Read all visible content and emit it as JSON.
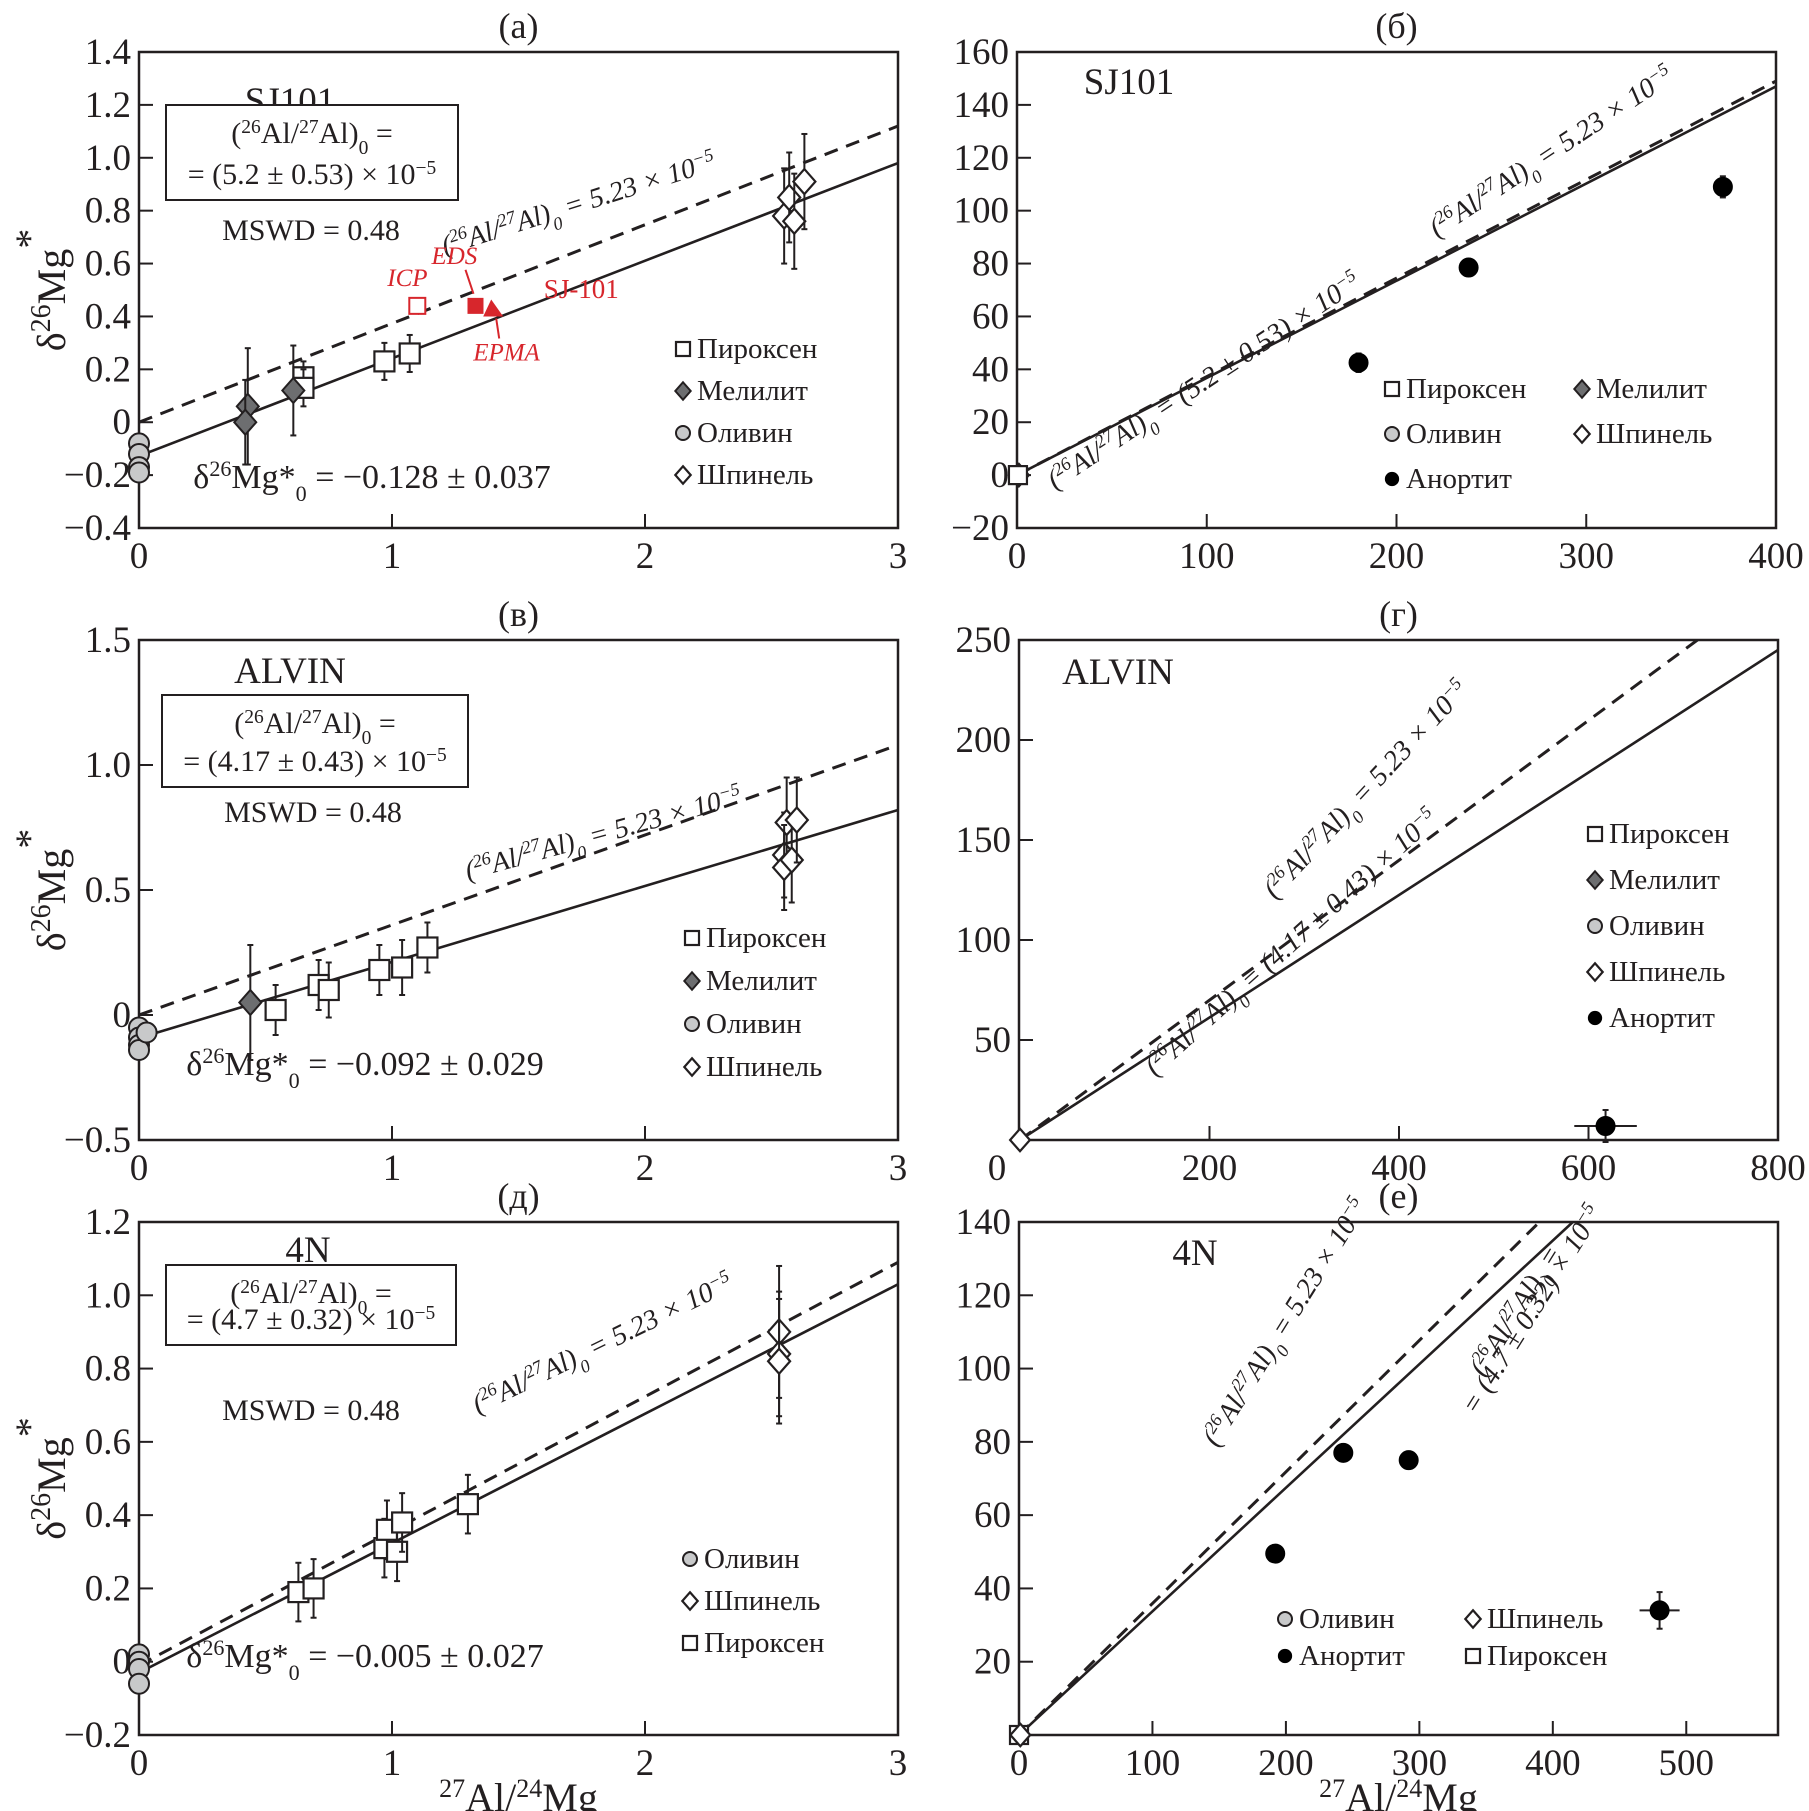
{
  "legend_names": {
    "pyroxene": "Пироксен",
    "melilite": "Мелилит",
    "olivine": "Оливин",
    "spinel": "Шпинель",
    "anorthite": "Анортит"
  },
  "colors": {
    "ink": "#231f20",
    "melilite_fill": "#6d6e70",
    "olivine_fill": "#c8c9ca",
    "red_annotation": "#d7262c"
  },
  "chart_data": [
    {
      "id": "a",
      "type": "scatter",
      "panel_tag": "(a)",
      "sample": "SJ101",
      "xlabel": "",
      "ylabel": "δ26Mg*",
      "xlim": [
        0,
        3
      ],
      "ylim": [
        -0.4,
        1.4
      ],
      "xticks": [
        0,
        1,
        2,
        3
      ],
      "yticks": [
        -0.4,
        -0.2,
        0,
        0.2,
        0.4,
        0.6,
        0.8,
        1.0,
        1.2,
        1.4
      ],
      "ytick_labels": [
        "−0.4",
        "−0.2",
        "0",
        "0.2",
        "0.4",
        "0.6",
        "0.8",
        "1.0",
        "1.2",
        "1.4"
      ],
      "xtick_labels": [
        "0",
        "1",
        "2",
        "3"
      ],
      "grid": false,
      "box": {
        "line1": "(²⁶Al/²⁷Al)₀ =",
        "line2": "= (5.2 ± 0.53) × 10⁻⁵"
      },
      "mswd": "MSWD = 0.48",
      "intercept_text": "δ²⁶Mg*₀ = −0.128 ± 0.037",
      "lines": [
        {
          "name": "reference",
          "style": "dashed",
          "x": [
            0,
            3
          ],
          "y": [
            0.0,
            1.12
          ],
          "label": "(²⁶Al/²⁷Al)₀ = 5.23 × 10⁻⁵"
        },
        {
          "name": "isochron",
          "style": "solid",
          "x": [
            0,
            3
          ],
          "y": [
            -0.128,
            0.98
          ],
          "label": ""
        }
      ],
      "legend": {
        "placement": "bottom-right",
        "items": [
          "pyroxene",
          "melilite",
          "olivine",
          "spinel"
        ]
      },
      "series": [
        {
          "name": "pyroxene",
          "points": [
            [
              0.65,
              0.17,
              0.06
            ],
            [
              0.65,
              0.13,
              0.07
            ],
            [
              0.97,
              0.23,
              0.07
            ],
            [
              1.07,
              0.26,
              0.07
            ]
          ]
        },
        {
          "name": "melilite",
          "points": [
            [
              0.43,
              0.06,
              0.22
            ],
            [
              0.42,
              0.0,
              0.16
            ],
            [
              0.61,
              0.12,
              0.17
            ]
          ]
        },
        {
          "name": "olivine",
          "points": [
            [
              0.0,
              -0.08,
              0.0
            ],
            [
              0.0,
              -0.12,
              0.0
            ],
            [
              0.0,
              -0.17,
              0.0
            ],
            [
              0.0,
              -0.19,
              0.0
            ]
          ]
        },
        {
          "name": "spinel",
          "points": [
            [
              2.55,
              0.78,
              0.18
            ],
            [
              2.57,
              0.85,
              0.17
            ],
            [
              2.59,
              0.76,
              0.18
            ],
            [
              2.63,
              0.91,
              0.18
            ]
          ]
        }
      ],
      "annotations": [
        {
          "text": "ICP",
          "x": 1.1,
          "y": 0.44,
          "marker": "open-square"
        },
        {
          "text": "EDS",
          "x": 1.33,
          "y": 0.44,
          "marker": "filled-square"
        },
        {
          "text": "EPMA",
          "x": 1.4,
          "y": 0.43,
          "marker": "filled-triangle"
        },
        {
          "text": "SJ-101",
          "x": 1.6,
          "y": 0.47,
          "marker": "none"
        }
      ]
    },
    {
      "id": "b",
      "type": "scatter",
      "panel_tag": "(б)",
      "sample": "SJ101",
      "xlabel": "",
      "ylabel": "",
      "xlim": [
        0,
        400
      ],
      "ylim": [
        -20,
        160
      ],
      "xticks": [
        0,
        100,
        200,
        300,
        400
      ],
      "xtick_labels": [
        "0",
        "100",
        "200",
        "300",
        "400"
      ],
      "yticks": [
        -20,
        0,
        20,
        40,
        60,
        80,
        100,
        120,
        140,
        160
      ],
      "ytick_labels": [
        "−20",
        "0",
        "20",
        "40",
        "60",
        "80",
        "100",
        "120",
        "140",
        "160"
      ],
      "grid": false,
      "lines": [
        {
          "name": "reference",
          "style": "dashed",
          "x": [
            0,
            400
          ],
          "y": [
            0,
            149
          ],
          "label": "(²⁶Al/²⁷Al)₀ = 5.23 × 10⁻⁵"
        },
        {
          "name": "isochron",
          "style": "solid",
          "x": [
            0,
            400
          ],
          "y": [
            0,
            147
          ],
          "label": "(²⁶Al/²⁷Al)₀ = (5.2 ± 0.53) × 10⁻⁵"
        }
      ],
      "legend": {
        "placement": "bottom-right",
        "items": [
          "pyroxene",
          "melilite",
          "olivine",
          "spinel",
          "anorthite"
        ]
      },
      "series": [
        {
          "name": "spinel",
          "points": [
            [
              1,
              0,
              0
            ]
          ]
        },
        {
          "name": "pyroxene",
          "points": [
            [
              0.5,
              0,
              0
            ]
          ]
        },
        {
          "name": "anorthite",
          "points": [
            [
              180,
              42.5,
              3.5
            ],
            [
              238,
              78.5,
              3
            ],
            [
              372,
              109,
              4
            ]
          ]
        }
      ]
    },
    {
      "id": "c",
      "type": "scatter",
      "panel_tag": "(в)",
      "sample": "ALVIN",
      "xlabel": "",
      "ylabel": "δ26Mg*",
      "xlim": [
        0,
        3
      ],
      "ylim": [
        -0.5,
        1.5
      ],
      "xticks": [
        0,
        1,
        2,
        3
      ],
      "xtick_labels": [
        "0",
        "1",
        "2",
        "3"
      ],
      "yticks": [
        -0.5,
        0,
        0.5,
        1.0,
        1.5
      ],
      "ytick_labels": [
        "−0.5",
        "0",
        "0.5",
        "1.0",
        "1.5"
      ],
      "grid": false,
      "box": {
        "line1": "(²⁶Al/²⁷Al)₀ =",
        "line2": "= (4.17 ± 0.43) × 10⁻⁵"
      },
      "mswd": "MSWD = 0.48",
      "intercept_text": "δ²⁶Mg*₀ = −0.092 ± 0.029",
      "lines": [
        {
          "name": "reference",
          "style": "dashed",
          "x": [
            0,
            3
          ],
          "y": [
            0.0,
            1.08
          ],
          "label": "(²⁶Al/²⁷Al)₀ = 5.23 × 10⁻⁵"
        },
        {
          "name": "isochron",
          "style": "solid",
          "x": [
            0,
            3
          ],
          "y": [
            -0.092,
            0.82
          ],
          "label": ""
        }
      ],
      "legend": {
        "placement": "bottom-right",
        "items": [
          "pyroxene",
          "melilite",
          "olivine",
          "spinel"
        ]
      },
      "series": [
        {
          "name": "pyroxene",
          "points": [
            [
              0.54,
              0.02,
              0.1
            ],
            [
              0.71,
              0.12,
              0.1
            ],
            [
              0.75,
              0.1,
              0.11
            ],
            [
              0.95,
              0.18,
              0.1
            ],
            [
              1.04,
              0.19,
              0.11
            ],
            [
              1.14,
              0.27,
              0.1
            ]
          ]
        },
        {
          "name": "melilite",
          "points": [
            [
              0.44,
              0.05,
              0.23
            ]
          ]
        },
        {
          "name": "olivine",
          "points": [
            [
              0.0,
              -0.05,
              0.0
            ],
            [
              0.0,
              -0.09,
              0.0
            ],
            [
              0.0,
              -0.12,
              0.0
            ],
            [
              0.0,
              -0.14,
              0.0
            ],
            [
              0.03,
              -0.07,
              0.0
            ]
          ]
        },
        {
          "name": "spinel",
          "points": [
            [
              2.55,
              0.64,
              0.17
            ],
            [
              2.56,
              0.77,
              0.18
            ],
            [
              2.55,
              0.59,
              0.17
            ],
            [
              2.58,
              0.62,
              0.17
            ],
            [
              2.6,
              0.78,
              0.17
            ]
          ]
        }
      ]
    },
    {
      "id": "d",
      "type": "scatter",
      "panel_tag": "(г)",
      "sample": "ALVIN",
      "xlabel": "",
      "ylabel": "",
      "xlim": [
        0,
        800
      ],
      "ylim": [
        0,
        250
      ],
      "xticks": [
        0,
        200,
        400,
        600,
        800
      ],
      "xtick_labels": [
        "0",
        "200",
        "400",
        "600",
        "800"
      ],
      "yticks": [
        50,
        100,
        150,
        200,
        250
      ],
      "ytick_labels": [
        "50",
        "100",
        "150",
        "200",
        "250"
      ],
      "grid": false,
      "lines": [
        {
          "name": "reference",
          "style": "dashed",
          "x": [
            0,
            715
          ],
          "y": [
            0,
            250
          ],
          "label": "(²⁶Al/²⁷Al)₀ = 5.23 × 10⁻⁵"
        },
        {
          "name": "isochron",
          "style": "solid",
          "x": [
            0,
            800
          ],
          "y": [
            0,
            245
          ],
          "label": "(²⁶Al/²⁷Al)₀ = (4.17 ± 0.43) × 10⁻⁵"
        }
      ],
      "legend": {
        "placement": "right",
        "items": [
          "pyroxene",
          "melilite",
          "olivine",
          "spinel",
          "anorthite"
        ]
      },
      "series": [
        {
          "name": "spinel",
          "points": [
            [
              0,
              0,
              0
            ]
          ]
        },
        {
          "name": "anorthite",
          "points": [
            [
              618,
              7,
              8
            ]
          ],
          "xerr": 33
        }
      ]
    },
    {
      "id": "e",
      "type": "scatter",
      "panel_tag": "(д)",
      "sample": "4N",
      "xlabel": "27Al/24Mg",
      "ylabel": "δ26Mg*",
      "xlim": [
        0,
        3
      ],
      "ylim": [
        -0.2,
        1.2
      ],
      "xticks": [
        0,
        1,
        2,
        3
      ],
      "xtick_labels": [
        "0",
        "1",
        "2",
        "3"
      ],
      "yticks": [
        -0.2,
        0,
        0.2,
        0.4,
        0.6,
        0.8,
        1.0,
        1.2
      ],
      "ytick_labels": [
        "−0.2",
        "0",
        "0.2",
        "0.4",
        "0.6",
        "0.8",
        "1.0",
        "1.2"
      ],
      "grid": false,
      "box": {
        "line1": "(²⁶Al/²⁷Al)₀ =",
        "line2": "= (4.7 ± 0.32) × 10⁻⁵"
      },
      "mswd": "MSWD = 0.48",
      "intercept_text": "δ²⁶Mg*₀ = −0.005 ± 0.027",
      "lines": [
        {
          "name": "reference",
          "style": "dashed",
          "x": [
            0,
            3
          ],
          "y": [
            -0.01,
            1.09
          ],
          "label": "(²⁶Al/²⁷Al)₀ = 5.23 × 10⁻⁵"
        },
        {
          "name": "isochron",
          "style": "solid",
          "x": [
            0,
            3
          ],
          "y": [
            -0.03,
            1.03
          ],
          "label": ""
        }
      ],
      "legend": {
        "placement": "bottom-right",
        "items": [
          "olivine",
          "spinel",
          "pyroxene"
        ]
      },
      "series": [
        {
          "name": "pyroxene",
          "points": [
            [
              0.63,
              0.19,
              0.08
            ],
            [
              0.69,
              0.2,
              0.08
            ],
            [
              0.97,
              0.31,
              0.08
            ],
            [
              0.98,
              0.36,
              0.08
            ],
            [
              1.02,
              0.3,
              0.08
            ],
            [
              1.04,
              0.38,
              0.08
            ],
            [
              1.3,
              0.43,
              0.08
            ]
          ]
        },
        {
          "name": "olivine",
          "points": [
            [
              0.0,
              0.02,
              0.0
            ],
            [
              0.0,
              0.0,
              0.0
            ],
            [
              0.0,
              -0.02,
              0.0
            ],
            [
              0.0,
              -0.06,
              0.0
            ]
          ]
        },
        {
          "name": "spinel",
          "points": [
            [
              2.53,
              0.9,
              0.18
            ],
            [
              2.53,
              0.84,
              0.17
            ],
            [
              2.53,
              0.82,
              0.17
            ]
          ]
        }
      ]
    },
    {
      "id": "f",
      "type": "scatter",
      "panel_tag": "(е)",
      "sample": "4N",
      "xlabel": "27Al/24Mg",
      "ylabel": "",
      "xlim": [
        0,
        550
      ],
      "ylim": [
        0,
        140
      ],
      "xticks": [
        0,
        100,
        200,
        300,
        400,
        500
      ],
      "xtick_labels": [
        "0",
        "100",
        "200",
        "300",
        "400",
        "500"
      ],
      "yticks": [
        20,
        40,
        60,
        80,
        100,
        120,
        140
      ],
      "ytick_labels": [
        "20",
        "40",
        "60",
        "80",
        "100",
        "120",
        "140"
      ],
      "grid": false,
      "lines": [
        {
          "name": "reference",
          "style": "dashed",
          "x": [
            0,
            390
          ],
          "y": [
            0,
            140
          ],
          "label": "(²⁶Al/²⁷Al)₀ = 5.23 × 10⁻⁵"
        },
        {
          "name": "isochron",
          "style": "solid",
          "x": [
            0,
            415
          ],
          "y": [
            0,
            140
          ],
          "label": "(²⁶Al/²⁷Al)₀ = = (4.7 ± 0.32) × 10⁻⁵"
        }
      ],
      "legend": {
        "placement": "bottom-center",
        "items": [
          "olivine",
          "spinel",
          "anorthite",
          "pyroxene"
        ]
      },
      "series": [
        {
          "name": "pyroxene",
          "points": [
            [
              0,
              0,
              0
            ]
          ]
        },
        {
          "name": "spinel",
          "points": [
            [
              1,
              0,
              0
            ]
          ]
        },
        {
          "name": "anorthite",
          "points": [
            [
              192,
              49.5,
              0
            ],
            [
              243,
              77,
              0
            ],
            [
              292,
              75,
              0
            ],
            [
              480,
              34,
              5
            ]
          ],
          "xerr_last": 15
        }
      ]
    }
  ]
}
